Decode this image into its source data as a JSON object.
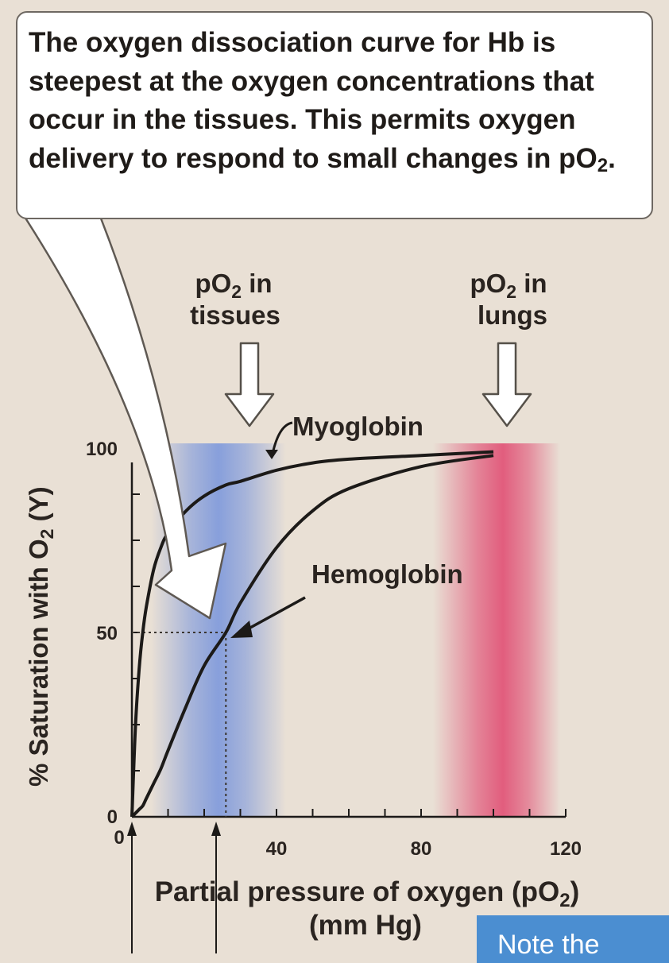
{
  "callout": {
    "text_main": "The oxygen dissociation curve for Hb is steepest at the oxygen concentrations that occur in the tissues. This permits oxygen delivery to respond to small changes in pO",
    "text_sub": "2",
    "text_end": "."
  },
  "labels": {
    "tissues_line1_prefix": "pO",
    "tissues_line1_sub": "2",
    "tissues_line1_suffix": " in",
    "tissues_line2": "tissues",
    "lungs_line1_prefix": "pO",
    "lungs_line1_sub": "2",
    "lungs_line1_suffix": " in",
    "lungs_line2": "lungs"
  },
  "note_button": {
    "label": "Note the"
  },
  "colors": {
    "tissue_band": "#6f8fdd",
    "lung_band": "#e0466e",
    "curve": "#1c1a18",
    "background": "#e9e0d5"
  },
  "chart_data": {
    "type": "line",
    "xlabel_main": "Partial pressure of oxygen (pO",
    "xlabel_sub": "2",
    "xlabel_end": ")",
    "xlabel_line2": "(mm Hg)",
    "ylabel_main": "% Saturation with O",
    "ylabel_sub": "2",
    "ylabel_end": " (Y)",
    "xlim": [
      0,
      120
    ],
    "ylim": [
      0,
      100
    ],
    "x_ticks": [
      0,
      40,
      80,
      120
    ],
    "x_tick_labels": [
      "0",
      "40",
      "80",
      "120"
    ],
    "y_ticks": [
      0,
      50,
      100
    ],
    "y_tick_labels": [
      "0",
      "50",
      "100"
    ],
    "grid": false,
    "x": [
      0,
      1,
      2,
      3,
      4,
      6,
      8,
      10,
      15,
      20,
      26,
      30,
      40,
      50,
      60,
      80,
      100
    ],
    "series": [
      {
        "name": "Myoglobin",
        "values": [
          0,
          25,
          40,
          50,
          57,
          67,
          73,
          77,
          83,
          87,
          90,
          91,
          94,
          96,
          97,
          98,
          99
        ]
      },
      {
        "name": "Hemoglobin",
        "values": [
          0,
          1,
          2,
          3,
          5,
          9,
          13,
          18,
          30,
          41,
          50,
          58,
          73,
          83,
          89,
          95,
          98
        ]
      }
    ],
    "annotations": [
      "Myoglobin",
      "Hemoglobin"
    ]
  }
}
